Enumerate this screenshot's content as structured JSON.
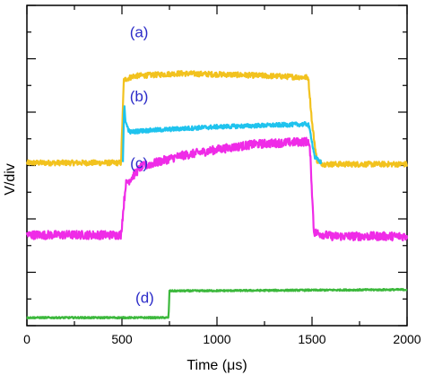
{
  "chart_data": {
    "type": "line",
    "xlabel": "Time (μs)",
    "ylabel": "V/div",
    "xlim": [
      0,
      2000
    ],
    "ylim": [
      0,
      12
    ],
    "x_ticks": [
      "0",
      "500",
      "1000",
      "1500",
      "2000"
    ],
    "y_ticks_labeled": false,
    "grid": false,
    "legend": "none",
    "series": [
      {
        "name": "(a)",
        "color": "#f2c21e",
        "points": [
          [
            0,
            6.1
          ],
          [
            495,
            6.1
          ],
          [
            510,
            9.2
          ],
          [
            560,
            9.35
          ],
          [
            800,
            9.45
          ],
          [
            1100,
            9.4
          ],
          [
            1300,
            9.35
          ],
          [
            1480,
            9.3
          ],
          [
            1500,
            7.6
          ],
          [
            1525,
            6.2
          ],
          [
            1560,
            6.05
          ],
          [
            2000,
            6.05
          ]
        ],
        "noise": 0.1
      },
      {
        "name": "(b)",
        "color": "#1fc3ee",
        "points": [
          [
            505,
            6.1
          ],
          [
            512,
            8.3
          ],
          [
            520,
            7.6
          ],
          [
            540,
            7.25
          ],
          [
            600,
            7.3
          ],
          [
            1000,
            7.45
          ],
          [
            1480,
            7.55
          ],
          [
            1495,
            7.1
          ],
          [
            1515,
            6.3
          ],
          [
            1550,
            6.1
          ]
        ],
        "noise": 0.08
      },
      {
        "name": "(c)",
        "color": "#ef2be7",
        "points": [
          [
            0,
            3.4
          ],
          [
            495,
            3.4
          ],
          [
            520,
            5.3
          ],
          [
            600,
            5.95
          ],
          [
            800,
            6.35
          ],
          [
            1000,
            6.6
          ],
          [
            1200,
            6.8
          ],
          [
            1480,
            6.9
          ],
          [
            1490,
            6.5
          ],
          [
            1510,
            3.5
          ],
          [
            1600,
            3.35
          ],
          [
            2000,
            3.35
          ]
        ],
        "noise": 0.16
      },
      {
        "name": "(d)",
        "color": "#3cb83c",
        "points": [
          [
            0,
            0.3
          ],
          [
            745,
            0.3
          ],
          [
            750,
            1.3
          ],
          [
            2000,
            1.35
          ]
        ],
        "noise": 0.03
      }
    ],
    "annotations": [
      {
        "text": "(a)",
        "x": 590,
        "y": 10.8,
        "color": "#2b2bc8"
      },
      {
        "text": "(b)",
        "x": 590,
        "y": 8.4,
        "color": "#2b2bc8"
      },
      {
        "text": "(c)",
        "x": 590,
        "y": 5.9,
        "color": "#2b2bc8"
      },
      {
        "text": "(d)",
        "x": 620,
        "y": 0.85,
        "color": "#2b2bc8"
      }
    ]
  }
}
